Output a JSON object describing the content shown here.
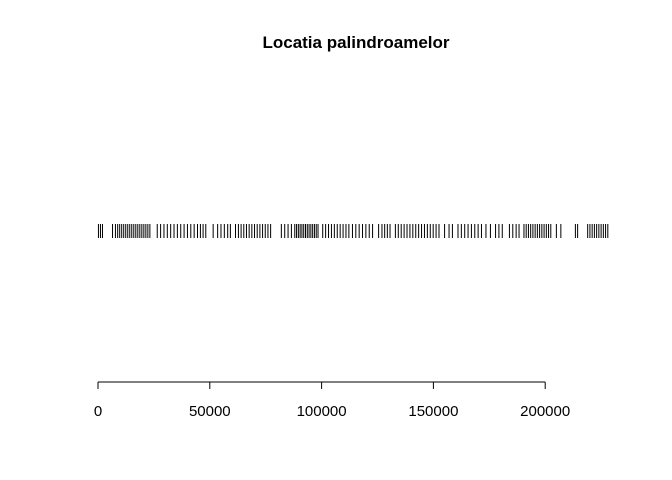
{
  "chart_data": {
    "type": "scatter",
    "variant": "strip",
    "title": "Locatia palindroamelor",
    "xlabel": "",
    "ylabel": "",
    "xlim": [
      0,
      230000
    ],
    "x_ticks": [
      0,
      50000,
      100000,
      150000,
      200000
    ],
    "x_tick_labels": [
      "0",
      "50000",
      "100000",
      "150000",
      "200000"
    ],
    "grid": false,
    "legend": "none",
    "colors": {
      "marks": "#000000",
      "background": "#ffffff"
    },
    "series": [
      {
        "values": [
          200,
          1100,
          2000,
          6500,
          7800,
          8800,
          9700,
          10600,
          11500,
          12400,
          13300,
          14200,
          15100,
          16000,
          16900,
          17800,
          18700,
          19600,
          20500,
          21400,
          22300,
          23200,
          26500,
          28000,
          29500,
          31000,
          32500,
          34000,
          35500,
          37000,
          38500,
          40000,
          41500,
          43000,
          44500,
          45800,
          47000,
          48200,
          51500,
          53500,
          55000,
          56500,
          58000,
          59200,
          61500,
          62800,
          64000,
          65200,
          66400,
          67600,
          68800,
          70000,
          71200,
          72400,
          73600,
          74800,
          76000,
          77200,
          82000,
          83500,
          85000,
          86500,
          88000,
          88800,
          89600,
          90400,
          91200,
          92000,
          92800,
          93600,
          94400,
          95200,
          96000,
          96800,
          97600,
          98400,
          100500,
          101800,
          103100,
          104400,
          105700,
          107000,
          108300,
          109600,
          110900,
          112200,
          113800,
          115300,
          116800,
          118300,
          119800,
          121300,
          122800,
          125500,
          127000,
          128200,
          129400,
          130600,
          133000,
          134300,
          135600,
          136900,
          138200,
          139500,
          140800,
          142100,
          143400,
          144700,
          146000,
          147300,
          148600,
          149900,
          151200,
          152500,
          155000,
          157000,
          158500,
          161000,
          162500,
          164000,
          165500,
          167000,
          168500,
          170000,
          171500,
          173500,
          175500,
          177800,
          179300,
          180800,
          184000,
          185500,
          187000,
          188300,
          190500,
          191500,
          192500,
          193500,
          194500,
          195500,
          196500,
          197500,
          198500,
          199500,
          200500,
          201500,
          202500,
          205000,
          207000,
          213500,
          214500,
          219000,
          220000,
          221000,
          222000,
          223000,
          224000,
          225000,
          226000,
          227000,
          228000
        ]
      }
    ]
  }
}
